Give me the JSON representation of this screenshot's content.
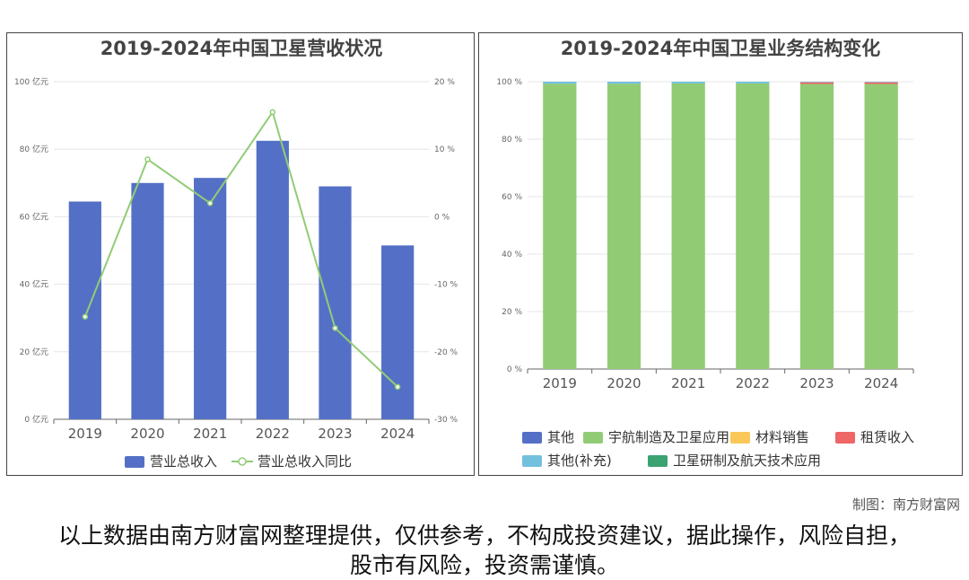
{
  "credit": "制图：南方财富网",
  "disclaimer": "以上数据由南方财富网整理提供，仅供参考，不构成投资建议，据此操作，风险自担，股市有风险，投资需谨慎。",
  "chart_data": [
    {
      "type": "bar+line",
      "title": "2019-2024年中国卫星营收状况",
      "categories": [
        "2019",
        "2020",
        "2021",
        "2022",
        "2023",
        "2024"
      ],
      "series": [
        {
          "name": "营业总收入",
          "type": "bar",
          "axis": "left",
          "color": "#5470c6",
          "values": [
            64.5,
            70,
            71.5,
            82.5,
            69,
            51.5
          ]
        },
        {
          "name": "营业总收入同比",
          "type": "line",
          "axis": "right",
          "color": "#91cc75",
          "values": [
            -14.8,
            8.5,
            2,
            15.5,
            -16.5,
            -25.2
          ]
        }
      ],
      "left_axis": {
        "ylim": [
          0,
          100
        ],
        "ticks": [
          0,
          20,
          40,
          60,
          80,
          100
        ],
        "unit": "亿元",
        "tick_labels": [
          "0 亿元",
          "20 亿元",
          "40 亿元",
          "60 亿元",
          "80 亿元",
          "100 亿元"
        ]
      },
      "right_axis": {
        "ylim": [
          -30,
          20
        ],
        "ticks": [
          -30,
          -20,
          -10,
          0,
          10,
          20
        ],
        "unit": "%",
        "tick_labels": [
          "-30 %",
          "-20 %",
          "-10 %",
          "0 %",
          "10 %",
          "20 %"
        ]
      },
      "legend": [
        "营业总收入",
        "营业总收入同比"
      ],
      "legend_placement": "bottom",
      "grid": true
    },
    {
      "type": "bar",
      "stacked": true,
      "title": "2019-2024年中国卫星业务结构变化",
      "categories": [
        "2019",
        "2020",
        "2021",
        "2022",
        "2023",
        "2024"
      ],
      "series": [
        {
          "name": "其他",
          "color": "#5470c6",
          "values": [
            0,
            0,
            0,
            0,
            0,
            0
          ]
        },
        {
          "name": "宇航制造及卫星应用",
          "color": "#91cc75",
          "values": [
            99.3,
            99.3,
            99.4,
            99.4,
            99.2,
            99.2
          ]
        },
        {
          "name": "材料销售",
          "color": "#fac858",
          "values": [
            0,
            0,
            0,
            0,
            0,
            0
          ]
        },
        {
          "name": "租赁收入",
          "color": "#ee6666",
          "values": [
            0,
            0,
            0,
            0,
            0.6,
            0.6
          ]
        },
        {
          "name": "其他(补充)",
          "color": "#73c0de",
          "values": [
            0.7,
            0.7,
            0.6,
            0.6,
            0.2,
            0.2
          ]
        },
        {
          "name": "卫星研制及航天技术应用",
          "color": "#3ba272",
          "values": [
            0,
            0,
            0,
            0,
            0,
            0
          ]
        }
      ],
      "ylim": [
        0,
        100
      ],
      "ticks": [
        0,
        20,
        40,
        60,
        80,
        100
      ],
      "tick_labels": [
        "0 %",
        "20 %",
        "40 %",
        "60 %",
        "80 %",
        "100 %"
      ],
      "legend_placement": "bottom",
      "grid": true
    }
  ]
}
